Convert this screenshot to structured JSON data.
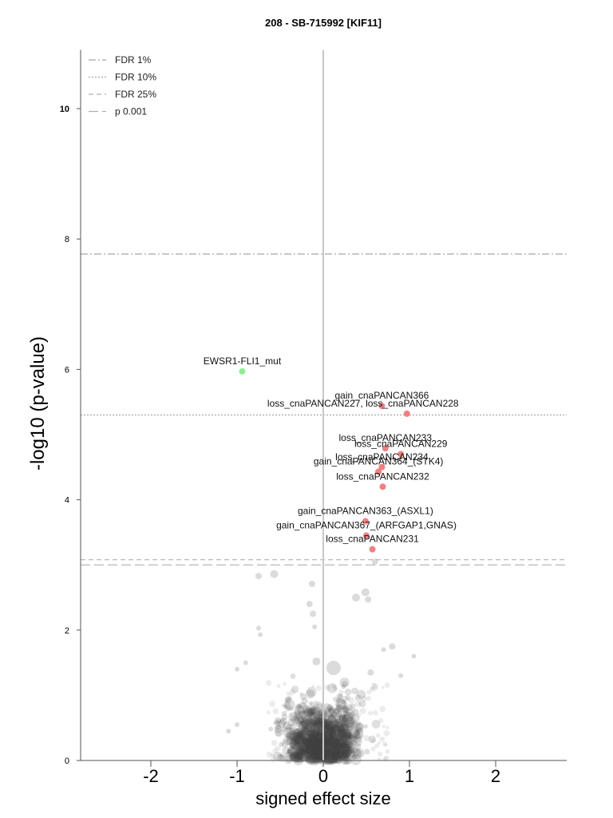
{
  "chart_data": {
    "type": "scatter",
    "title": "208 - SB-715992 [KIF11]",
    "xlabel": "signed effect size",
    "ylabel": "-log10 (p-value)",
    "xlim": [
      -2.8,
      2.8
    ],
    "ylim": [
      0,
      10.9
    ],
    "x_ticks": [
      "-2",
      "-1",
      "0",
      "1",
      "2"
    ],
    "y_ticks": [
      "0",
      "2",
      "4",
      "6",
      "8",
      "10"
    ],
    "legend_position": "top-left",
    "thresholds": [
      {
        "name": "FDR 1%",
        "y": 7.77,
        "style": "dashdot",
        "color": "#a8a8a8"
      },
      {
        "name": "FDR 10%",
        "y": 5.3,
        "style": "dotted",
        "color": "#a8a8a8"
      },
      {
        "name": "FDR 25%",
        "y": 3.08,
        "style": "dashed",
        "color": "#b0b0b0"
      },
      {
        "name": "p 0.001",
        "y": 3.0,
        "style": "longdash",
        "color": "#b0b0b0"
      }
    ],
    "highlighted_points": [
      {
        "label": "EWSR1-FLI1_mut",
        "x": -0.94,
        "y": 5.97,
        "color": "#90ee90"
      },
      {
        "label": "gain_cnaPANCAN366",
        "x": 0.68,
        "y": 5.44,
        "color": "#f08080"
      },
      {
        "label": "loss_cnaPANCAN227, loss_cnaPANCAN228",
        "x": 0.97,
        "y": 5.32,
        "color": "#f08080"
      },
      {
        "label": "loss_cnaPANCAN233",
        "x": 0.72,
        "y": 4.79,
        "color": "#f08080"
      },
      {
        "label": "loss_cnaPANCAN229",
        "x": 0.9,
        "y": 4.7,
        "color": "#f08080"
      },
      {
        "label": "loss_cnaPANCAN234",
        "x": 0.68,
        "y": 4.5,
        "color": "#f08080"
      },
      {
        "label": "gain_cnaPANCAN364_(STK4)",
        "x": 0.64,
        "y": 4.43,
        "color": "#f08080"
      },
      {
        "label": "loss_cnaPANCAN232",
        "x": 0.69,
        "y": 4.2,
        "color": "#f08080"
      },
      {
        "label": "gain_cnaPANCAN363_(ASXL1)",
        "x": 0.49,
        "y": 3.67,
        "color": "#f08080"
      },
      {
        "label": "gain_cnaPANCAN367_(ARFGAP1,GNAS)",
        "x": 0.5,
        "y": 3.45,
        "color": "#f08080"
      },
      {
        "label": "loss_cnaPANCAN231",
        "x": 0.57,
        "y": 3.24,
        "color": "#f08080"
      }
    ],
    "background_points": [
      [
        -0.75,
        2.83,
        4
      ],
      [
        -0.57,
        2.86,
        5
      ],
      [
        -0.13,
        2.71,
        4
      ],
      [
        -0.16,
        2.4,
        4
      ],
      [
        -0.12,
        2.25,
        4
      ],
      [
        -0.1,
        2.05,
        3
      ],
      [
        0.49,
        2.58,
        5
      ],
      [
        0.38,
        2.5,
        5
      ],
      [
        0.52,
        2.47,
        4
      ],
      [
        0.6,
        3.05,
        4
      ],
      [
        -0.75,
        2.03,
        3
      ],
      [
        -0.73,
        1.93,
        3
      ],
      [
        0.12,
        1.42,
        9
      ],
      [
        -0.08,
        1.52,
        5
      ],
      [
        0.55,
        1.35,
        4
      ],
      [
        0.8,
        1.75,
        4
      ],
      [
        1.05,
        1.6,
        3
      ],
      [
        0.7,
        1.7,
        3
      ],
      [
        -1.0,
        1.4,
        3
      ],
      [
        -0.9,
        1.5,
        3
      ],
      [
        -1.1,
        0.45,
        3
      ],
      [
        -1.0,
        0.55,
        3
      ],
      [
        0.9,
        1.3,
        3
      ]
    ]
  }
}
